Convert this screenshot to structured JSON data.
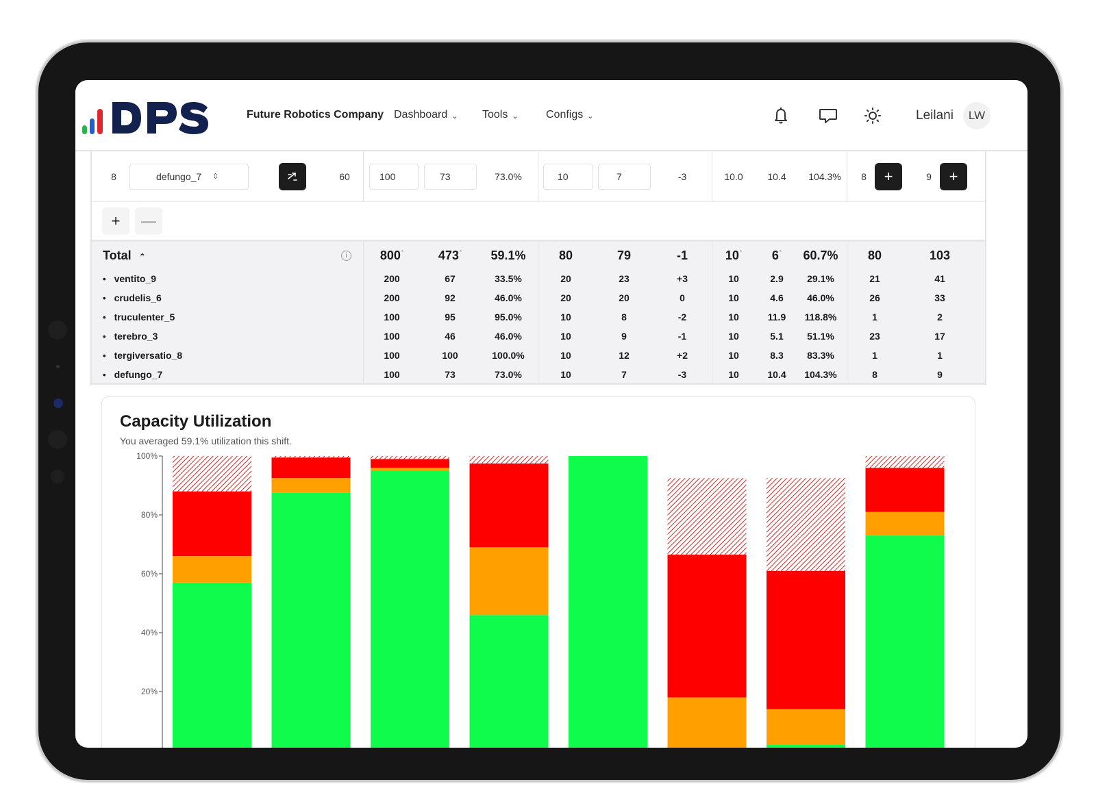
{
  "header": {
    "company": "Future Robotics Company",
    "nav": [
      {
        "label": "Dashboard",
        "icon": "chevron-down-icon"
      },
      {
        "label": "Tools",
        "icon": "chevron-down-icon"
      },
      {
        "label": "Configs",
        "icon": "chevron-down-icon"
      }
    ],
    "icons": [
      "bell-icon",
      "chat-icon",
      "sun-icon"
    ],
    "user_name": "Leilani",
    "user_initials": "LW"
  },
  "edit_row": {
    "index": "8",
    "robot_select": "defungo_7",
    "c1": "60",
    "c2": "100",
    "c3": "73",
    "c4": "73.0%",
    "c5": "10",
    "c6": "7",
    "c7": "-3",
    "c8": "10.0",
    "c9": "10.4",
    "c10": "104.3%",
    "c11": "8",
    "c12": "9"
  },
  "totals": {
    "label": "Total",
    "values": [
      "800",
      "473",
      "59.1%",
      "80",
      "79",
      "-1",
      "10",
      "6",
      "60.7%",
      "80",
      "103"
    ],
    "asterisk": "*"
  },
  "rows": [
    {
      "name": "ventito_9",
      "values": [
        "200",
        "67",
        "33.5%",
        "20",
        "23",
        "+3",
        "10",
        "2.9",
        "29.1%",
        "21",
        "41"
      ]
    },
    {
      "name": "crudelis_6",
      "values": [
        "200",
        "92",
        "46.0%",
        "20",
        "20",
        "0",
        "10",
        "4.6",
        "46.0%",
        "26",
        "33"
      ]
    },
    {
      "name": "truculenter_5",
      "values": [
        "100",
        "95",
        "95.0%",
        "10",
        "8",
        "-2",
        "10",
        "11.9",
        "118.8%",
        "1",
        "2"
      ]
    },
    {
      "name": "terebro_3",
      "values": [
        "100",
        "46",
        "46.0%",
        "10",
        "9",
        "-1",
        "10",
        "5.1",
        "51.1%",
        "23",
        "17"
      ]
    },
    {
      "name": "tergiversatio_8",
      "values": [
        "100",
        "100",
        "100.0%",
        "10",
        "12",
        "+2",
        "10",
        "8.3",
        "83.3%",
        "1",
        "1"
      ]
    },
    {
      "name": "defungo_7",
      "values": [
        "100",
        "73",
        "73.0%",
        "10",
        "7",
        "-3",
        "10",
        "10.4",
        "104.3%",
        "8",
        "9"
      ]
    }
  ],
  "capacity": {
    "title": "Capacity Utilization",
    "subtitle": "You averaged 59.1% utilization this shift."
  },
  "chart_data": {
    "type": "bar",
    "stacked": true,
    "ylim": [
      0,
      100
    ],
    "yticks": [
      "20%",
      "40%",
      "60%",
      "80%",
      "100%"
    ],
    "colors": {
      "green": "#10fc4c",
      "orange": "#ffa000",
      "red": "#ff0000",
      "hatch": "#d42a2a"
    },
    "series": [
      {
        "values": [
          57,
          87.5,
          95,
          46,
          100,
          0,
          2,
          73
        ]
      },
      {
        "values": [
          9,
          5,
          1,
          23,
          0,
          18,
          12,
          8
        ]
      },
      {
        "values": [
          22,
          7,
          3,
          28.5,
          0,
          48.5,
          47,
          15
        ]
      },
      {
        "values": [
          12,
          0.5,
          1,
          2.5,
          0,
          26,
          31.5,
          4
        ]
      }
    ]
  }
}
